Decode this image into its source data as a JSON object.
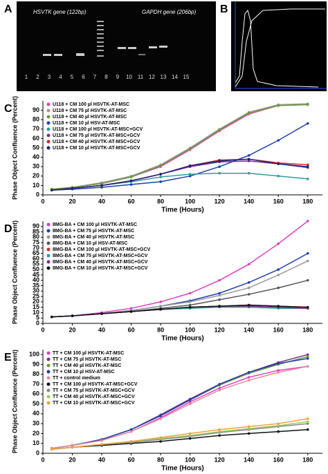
{
  "panel_a": {
    "label": "A",
    "left_title": "HSVTK gene (122bp)",
    "right_title": "GAPDH gene (206bp)",
    "lanes": [
      "1",
      "2",
      "3",
      "4",
      "5",
      "6",
      "7",
      "8",
      "9",
      "10",
      "11",
      "12",
      "13",
      "14",
      "15"
    ]
  },
  "panel_b": {
    "label": "B"
  },
  "chart_data": [
    {
      "type": "line",
      "panel_label": "C",
      "x_label": "Time (Hours)",
      "y_label": "Phase Object Confluence (Percent)",
      "x": [
        6,
        20,
        40,
        60,
        80,
        100,
        120,
        140,
        160,
        180
      ],
      "xlim": [
        0,
        190
      ],
      "xticks": [
        0,
        20,
        40,
        60,
        80,
        100,
        120,
        140,
        160,
        180
      ],
      "ylim": [
        0,
        100
      ],
      "yticks": [
        0,
        10,
        20,
        30,
        40,
        50,
        60,
        70,
        80,
        90
      ],
      "series": [
        {
          "name": "U118 + CM 100 µl HSVTK-AT-MSC",
          "color": "#e040c0",
          "values": [
            6,
            8,
            12,
            19,
            30,
            48,
            68,
            86,
            95,
            96
          ]
        },
        {
          "name": "U118 + CM 75 µl HSVTK-AT-MSC",
          "color": "#999999",
          "values": [
            6,
            8,
            13,
            20,
            32,
            50,
            70,
            88,
            96,
            97
          ]
        },
        {
          "name": "U118 + CM 40 µl HSVTK-AT-MSC",
          "color": "#6a9a3a",
          "values": [
            6,
            8,
            12,
            19,
            31,
            49,
            69,
            87,
            95,
            96
          ]
        },
        {
          "name": "U118 + CM 10 µl HSV-AT-MSC",
          "color": "#1f3faf",
          "values": [
            5,
            6,
            8,
            11,
            14,
            20,
            30,
            42,
            58,
            76
          ]
        },
        {
          "name": "U118 + CM 100 µl HSVTK-AT-MSC+GCV",
          "color": "#2aa198",
          "values": [
            5,
            7,
            10,
            14,
            19,
            22,
            23,
            23,
            20,
            17
          ]
        },
        {
          "name": "U118 + CM 75 µl HSVTK-AT-MSC+GCV",
          "color": "#7b2d8e",
          "values": [
            5,
            7,
            10,
            15,
            22,
            30,
            35,
            36,
            33,
            29
          ]
        },
        {
          "name": "U118 + CM 40 µl HSVTK-AT-MSC+GCV",
          "color": "#d62728",
          "values": [
            5,
            7,
            10,
            15,
            22,
            31,
            37,
            38,
            34,
            32
          ]
        },
        {
          "name": "U118 + CM 10 µl HSVTK-AT-MSC+GCV",
          "color": "#1a237e",
          "values": [
            5,
            7,
            10,
            15,
            22,
            31,
            36,
            38,
            33,
            30
          ]
        }
      ]
    },
    {
      "type": "line",
      "panel_label": "D",
      "x_label": "Time (Hours)",
      "y_label": "Phase Object Confluence (Percent)",
      "x": [
        6,
        20,
        40,
        60,
        80,
        100,
        120,
        140,
        160,
        180
      ],
      "xlim": [
        0,
        190
      ],
      "xticks": [
        0,
        20,
        40,
        60,
        80,
        100,
        120,
        140,
        160,
        180
      ],
      "ylim": [
        0,
        95
      ],
      "yticks": [
        0,
        5,
        10,
        15,
        20,
        25,
        30,
        35,
        40,
        45,
        50,
        55,
        60,
        65,
        70,
        75,
        80,
        85,
        90
      ],
      "series": [
        {
          "name": "8MG-BA + CM 100 µl HSVTK-AT-MSC",
          "color": "#e040c0",
          "values": [
            6,
            7,
            10,
            14,
            20,
            28,
            40,
            55,
            74,
            95
          ]
        },
        {
          "name": "8MG-BA + CM 75 µl HSVTK-AT-MSC",
          "color": "#1f3faf",
          "values": [
            6,
            7,
            9,
            12,
            16,
            21,
            28,
            38,
            50,
            65
          ]
        },
        {
          "name": "8MG-BA + CM 40 µl HSVTK-AT-MSC",
          "color": "#999999",
          "values": [
            6,
            7,
            9,
            12,
            16,
            20,
            26,
            33,
            45,
            58
          ]
        },
        {
          "name": "8MG-BA + CM 10 µl HSV-AT-MSC",
          "color": "#555555",
          "values": [
            6,
            7,
            9,
            11,
            14,
            17,
            22,
            27,
            33,
            40
          ]
        },
        {
          "name": "8MG-BA + CM 100 µl HSVTK-AT-MSC+GCV",
          "color": "#d62728",
          "values": [
            6,
            7,
            9,
            11,
            13,
            15,
            16,
            17,
            16,
            15
          ]
        },
        {
          "name": "8MG-BA + CM 75 µl HSVTK-AT-MSC+GCV",
          "color": "#2aa198",
          "values": [
            6,
            7,
            9,
            11,
            13,
            14,
            15,
            15,
            14,
            14
          ]
        },
        {
          "name": "8MG-BA + CM 40 µl HSVTK-AT-MSC+GCV",
          "color": "#7b2d8e",
          "values": [
            6,
            7,
            9,
            11,
            13,
            15,
            16,
            16,
            15,
            14
          ]
        },
        {
          "name": "8MG-BA + CM 10 µl HSVTK-AT-MSC+GCV",
          "color": "#111111",
          "values": [
            6,
            7,
            9,
            11,
            13,
            15,
            16,
            17,
            16,
            15
          ]
        }
      ]
    },
    {
      "type": "line",
      "panel_label": "E",
      "x_label": "Time (Hours)",
      "y_label": "Phase Object Confluence (Percent)",
      "x": [
        6,
        20,
        40,
        60,
        80,
        100,
        120,
        140,
        160,
        180
      ],
      "xlim": [
        0,
        190
      ],
      "xticks": [
        0,
        20,
        40,
        60,
        80,
        100,
        120,
        140,
        160,
        180
      ],
      "ylim": [
        0,
        105
      ],
      "yticks": [
        0,
        10,
        20,
        30,
        40,
        50,
        60,
        70,
        80,
        90,
        100
      ],
      "series": [
        {
          "name": "TT + CM 100 µl HSVTK-AT-MSC",
          "color": "#e040c0",
          "values": [
            5,
            8,
            13,
            22,
            36,
            52,
            66,
            77,
            84,
            88
          ]
        },
        {
          "name": "TT + CM 75 µl HSVTK-AT-MSC",
          "color": "#7b2d8e",
          "values": [
            5,
            8,
            14,
            24,
            39,
            55,
            70,
            82,
            92,
            100
          ]
        },
        {
          "name": "TT + CM 40  µl HSVTK-AT-MSC",
          "color": "#6a9a3a",
          "values": [
            5,
            8,
            14,
            24,
            38,
            54,
            69,
            81,
            90,
            98
          ]
        },
        {
          "name": "TT + CM 10 µl HSV-AT-MSC",
          "color": "#1f3faf",
          "values": [
            5,
            8,
            14,
            24,
            38,
            54,
            70,
            82,
            91,
            96
          ]
        },
        {
          "name": "TT + control medium",
          "color": "#e88a9a",
          "values": [
            5,
            8,
            13,
            22,
            35,
            50,
            64,
            74,
            82,
            88
          ]
        },
        {
          "name": "TT + CM 100 µl HSVTK-AT-MSC+GCV",
          "color": "#111111",
          "values": [
            4,
            6,
            8,
            10,
            12,
            15,
            18,
            20,
            22,
            24
          ]
        },
        {
          "name": "TT + CM 75 µl HSVTK-AT-MSC+GCV",
          "color": "#888888",
          "values": [
            4,
            6,
            9,
            11,
            14,
            17,
            21,
            24,
            27,
            30
          ]
        },
        {
          "name": "TT + CM 40  µl HSVTK-AT-MSC+GCV",
          "color": "#9acd60",
          "values": [
            4,
            6,
            9,
            12,
            15,
            18,
            22,
            25,
            28,
            32
          ]
        },
        {
          "name": "TT + CM 10 µl HSVTK-AT-MSC+GCV",
          "color": "#f0a040",
          "values": [
            4,
            6,
            9,
            12,
            16,
            20,
            24,
            27,
            30,
            35
          ]
        }
      ]
    }
  ]
}
